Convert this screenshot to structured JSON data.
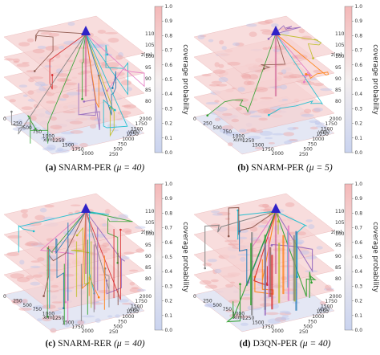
{
  "chart_data": [
    {
      "type": "line",
      "letter": "(a)",
      "algorithm": "SNARM-PER",
      "param": "(μ = 40)",
      "colorbar": {
        "label": "coverage probability",
        "min": 0.0,
        "max": 1.0,
        "ticks": [
          "0.0",
          "0.1",
          "0.2",
          "0.3",
          "0.4",
          "0.5",
          "0.6",
          "0.7",
          "0.8",
          "0.9",
          "1.0"
        ]
      },
      "x_ticks": [
        "0",
        "250",
        "500",
        "750",
        "1000",
        "1250",
        "1500",
        "1750",
        "2000"
      ],
      "x_label": "x(m)",
      "y_ticks": [
        "0",
        "250",
        "500",
        "750",
        "1000",
        "1250",
        "1500",
        "1750",
        "2000"
      ],
      "y_label": "y(m)",
      "z_ticks": [
        "80",
        "85",
        "90",
        "95",
        "100",
        "105",
        "110"
      ],
      "z_label": "z(m)",
      "layers": 5
    },
    {
      "type": "line",
      "letter": "(b)",
      "algorithm": "SNARM-PER",
      "param": "(μ = 5)",
      "colorbar": {
        "label": "coverage probability",
        "min": 0.0,
        "max": 1.0,
        "ticks": [
          "0.0",
          "0.1",
          "0.2",
          "0.3",
          "0.4",
          "0.5",
          "0.6",
          "0.7",
          "0.8",
          "0.9",
          "1.0"
        ]
      },
      "x_ticks": [
        "0",
        "250",
        "500",
        "750",
        "1000",
        "1250",
        "1500",
        "1750",
        "2000"
      ],
      "x_label": "x(m)",
      "y_ticks": [
        "0",
        "250",
        "500",
        "750",
        "1000",
        "1250",
        "1500",
        "1750",
        "2000"
      ],
      "y_label": "y(m)",
      "z_ticks": [
        "80",
        "85",
        "90",
        "95",
        "100",
        "105",
        "110"
      ],
      "z_label": "z(m)",
      "layers": 5
    },
    {
      "type": "line",
      "letter": "(c)",
      "algorithm": "SNARM-RER",
      "param": "(μ = 40)",
      "colorbar": {
        "label": "coverage probability",
        "min": 0.0,
        "max": 1.0,
        "ticks": [
          "0.0",
          "0.1",
          "0.2",
          "0.3",
          "0.4",
          "0.5",
          "0.6",
          "0.7",
          "0.8",
          "0.9",
          "1.0"
        ]
      },
      "x_ticks": [
        "0",
        "250",
        "500",
        "750",
        "1000",
        "1250",
        "1500",
        "1750",
        "2000"
      ],
      "x_label": "x(m)",
      "y_ticks": [
        "0",
        "250",
        "500",
        "750",
        "1000",
        "1250",
        "1500",
        "1750",
        "2000"
      ],
      "y_label": "y(m)",
      "z_ticks": [
        "80",
        "85",
        "90",
        "95",
        "100",
        "105",
        "110"
      ],
      "z_label": "z(m)",
      "layers": 5
    },
    {
      "type": "line",
      "letter": "(d)",
      "algorithm": "D3QN-PER",
      "param": "(μ = 40)",
      "colorbar": {
        "label": "coverage probability",
        "min": 0.0,
        "max": 1.0,
        "ticks": [
          "0.0",
          "0.1",
          "0.2",
          "0.3",
          "0.4",
          "0.5",
          "0.6",
          "0.7",
          "0.8",
          "0.9",
          "1.0"
        ]
      },
      "x_ticks": [
        "0",
        "250",
        "500",
        "750",
        "1000",
        "1250",
        "1500",
        "1750",
        "2000"
      ],
      "x_label": "x(m)",
      "y_ticks": [
        "0",
        "250",
        "500",
        "750",
        "1000",
        "1250",
        "1500",
        "1750",
        "2000"
      ],
      "y_label": "y(m)",
      "z_ticks": [
        "80",
        "85",
        "90",
        "95",
        "100",
        "105",
        "110"
      ],
      "z_label": "z(m)",
      "layers": 5
    }
  ],
  "colors": {
    "cov_high": "#f4b8b8",
    "cov_low": "#c9d3ef",
    "destination": "#2f22c8"
  }
}
